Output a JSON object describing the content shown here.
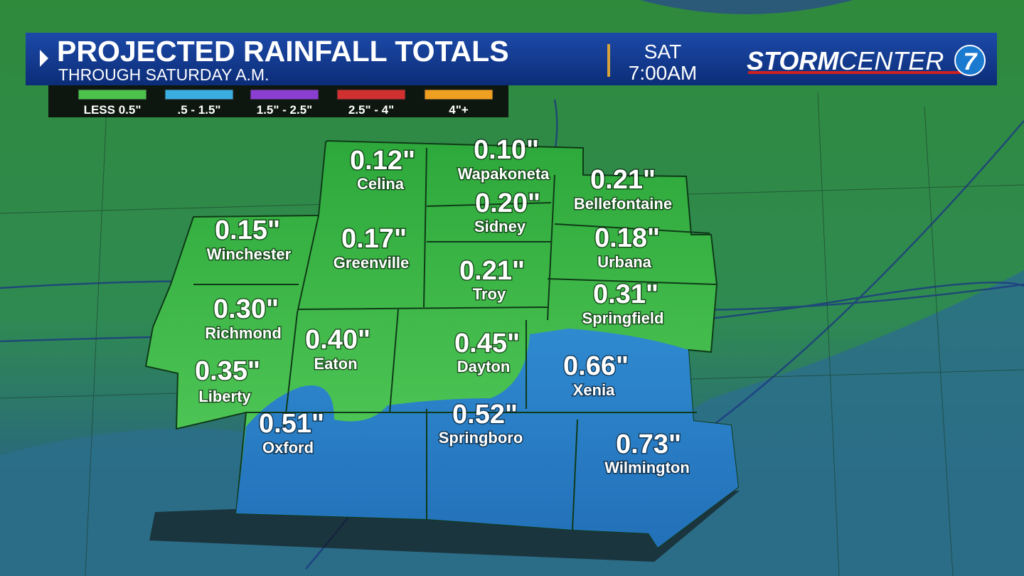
{
  "header": {
    "title": "PROJECTED RAINFALL TOTALS",
    "subtitle": "THROUGH SATURDAY A.M.",
    "day": "SAT",
    "time": "7:00AM",
    "logo": {
      "storm": "STORM",
      "center": "CENTER",
      "badge": "7"
    }
  },
  "legend": [
    {
      "label": "LESS 0.5\"",
      "color": "#4cc24c"
    },
    {
      "label": ".5 - 1.5\"",
      "color": "#3aaee0"
    },
    {
      "label": "1.5\" - 2.5\"",
      "color": "#8a3fd0"
    },
    {
      "label": "2.5\" - 4\"",
      "color": "#d03030"
    },
    {
      "label": "4\"+",
      "color": "#f0a020"
    }
  ],
  "locations": [
    {
      "amount": "0.12\"",
      "name": "Celina"
    },
    {
      "amount": "0.10\"",
      "name": "Wapakoneta"
    },
    {
      "amount": "0.21\"",
      "name": "Bellefontaine"
    },
    {
      "amount": "0.20\"",
      "name": "Sidney"
    },
    {
      "amount": "0.15\"",
      "name": "Winchester"
    },
    {
      "amount": "0.17\"",
      "name": "Greenville"
    },
    {
      "amount": "0.18\"",
      "name": "Urbana"
    },
    {
      "amount": "0.21\"",
      "name": "Troy"
    },
    {
      "amount": "0.30\"",
      "name": "Richmond"
    },
    {
      "amount": "0.31\"",
      "name": "Springfield"
    },
    {
      "amount": "0.40\"",
      "name": "Eaton"
    },
    {
      "amount": "0.45\"",
      "name": "Dayton"
    },
    {
      "amount": "0.66\"",
      "name": "Xenia"
    },
    {
      "amount": "0.35\"",
      "name": "Liberty"
    },
    {
      "amount": "0.51\"",
      "name": "Oxford"
    },
    {
      "amount": "0.52\"",
      "name": "Springboro"
    },
    {
      "amount": "0.73\"",
      "name": "Wilmington"
    }
  ]
}
